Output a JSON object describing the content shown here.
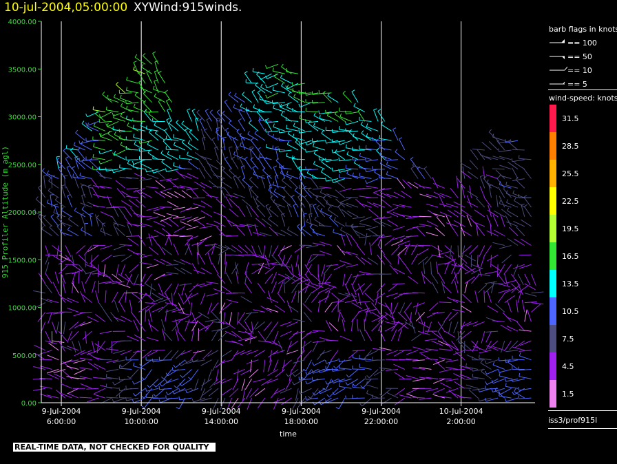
{
  "header": {
    "date_time": "10-jul-2004,05:00:00",
    "title": "XYWind:915winds."
  },
  "legend": {
    "barb_title": "barb flags in knots",
    "barb_entries": [
      "== 100",
      "== 50",
      "== 10",
      "== 5"
    ],
    "speed_title": "wind-speed: knots",
    "speed_levels": [
      {
        "label": "31.5",
        "color": "#ff1a4d"
      },
      {
        "label": "28.5",
        "color": "#ff8000"
      },
      {
        "label": "25.5",
        "color": "#ffb300"
      },
      {
        "label": "22.5",
        "color": "#ffff00"
      },
      {
        "label": "19.5",
        "color": "#b3ff33"
      },
      {
        "label": "16.5",
        "color": "#33e633"
      },
      {
        "label": "13.5",
        "color": "#00ffff"
      },
      {
        "label": "10.5",
        "color": "#4d66ff"
      },
      {
        "label": "7.5",
        "color": "#4d4d80"
      },
      {
        "label": "4.5",
        "color": "#a020f0"
      },
      {
        "label": "1.5",
        "color": "#ee82ee"
      }
    ],
    "source": "iss3/prof915l"
  },
  "note": "REAL-TIME DATA, NOT CHECKED FOR QUALITY",
  "chart_data": {
    "type": "wind-barb time-height",
    "title": "XYWind:915winds.",
    "xlabel": "time",
    "ylabel": "915 Profiler Altitude (m agl)",
    "x_ticks": [
      {
        "line1": "9-Jul-2004",
        "line2": "6:00:00",
        "hour": 6
      },
      {
        "line1": "9-Jul-2004",
        "line2": "10:00:00",
        "hour": 10
      },
      {
        "line1": "9-Jul-2004",
        "line2": "14:00:00",
        "hour": 14
      },
      {
        "line1": "9-Jul-2004",
        "line2": "18:00:00",
        "hour": 18
      },
      {
        "line1": "9-Jul-2004",
        "line2": "22:00:00",
        "hour": 22
      },
      {
        "line1": "10-Jul-2004",
        "line2": "2:00:00",
        "hour": 26
      }
    ],
    "xlim_hours": [
      5,
      29.7
    ],
    "y_ticks": [
      "4000.00",
      "3500.00",
      "3000.00",
      "2500.00",
      "2000.00",
      "1500.00",
      "1000.00",
      "500.00",
      "0.00"
    ],
    "ylim": [
      0,
      4000
    ],
    "time_step_hours": 0.333,
    "height_step_m": 100,
    "vertical_grid": true,
    "horizontal_grid": false
  }
}
